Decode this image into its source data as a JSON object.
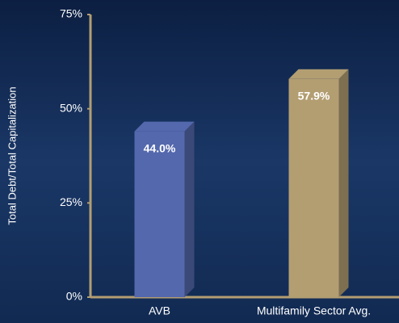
{
  "chart_data": {
    "type": "bar3d",
    "ylabel": "Total Debt/Total Capitalization",
    "categories": [
      "AVB",
      "Multifamily Sector Avg."
    ],
    "values": [
      44.0,
      57.9
    ],
    "value_labels": [
      "44.0%",
      "57.9%"
    ],
    "colors": [
      "#5468ad",
      "#b39e72"
    ],
    "ylim": [
      0,
      75
    ],
    "yticks": [
      {
        "value": 0,
        "label": "0%"
      },
      {
        "value": 25,
        "label": "25%"
      },
      {
        "value": 50,
        "label": "50%"
      },
      {
        "value": 75,
        "label": "75%"
      }
    ]
  }
}
